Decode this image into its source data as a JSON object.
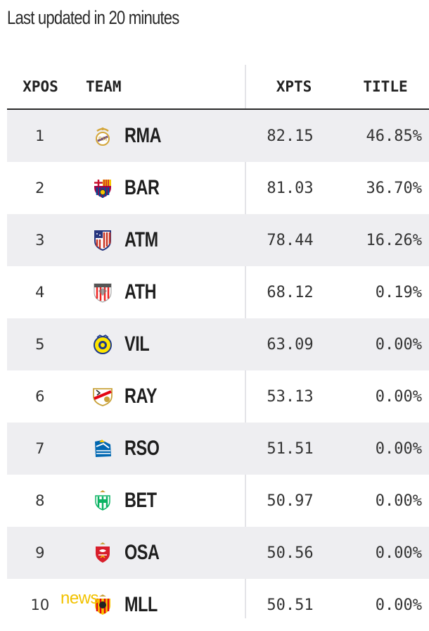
{
  "header": {
    "updated_text": "Last updated in 20 minutes"
  },
  "table": {
    "columns": {
      "pos": "XPOS",
      "team": "TEAM",
      "xpts": "XPTS",
      "title": "TITLE"
    },
    "rows": [
      {
        "pos": "1",
        "team": "RMA",
        "xpts": "82.15",
        "title": "46.85%",
        "crest": "real-madrid-crest-icon"
      },
      {
        "pos": "2",
        "team": "BAR",
        "xpts": "81.03",
        "title": "36.70%",
        "crest": "barcelona-crest-icon"
      },
      {
        "pos": "3",
        "team": "ATM",
        "xpts": "78.44",
        "title": "16.26%",
        "crest": "atletico-crest-icon"
      },
      {
        "pos": "4",
        "team": "ATH",
        "xpts": "68.12",
        "title": "0.19%",
        "crest": "athletic-crest-icon"
      },
      {
        "pos": "5",
        "team": "VIL",
        "xpts": "63.09",
        "title": "0.00%",
        "crest": "villarreal-crest-icon"
      },
      {
        "pos": "6",
        "team": "RAY",
        "xpts": "53.13",
        "title": "0.00%",
        "crest": "rayo-crest-icon"
      },
      {
        "pos": "7",
        "team": "RSO",
        "xpts": "51.51",
        "title": "0.00%",
        "crest": "real-sociedad-crest-icon"
      },
      {
        "pos": "8",
        "team": "BET",
        "xpts": "50.97",
        "title": "0.00%",
        "crest": "betis-crest-icon"
      },
      {
        "pos": "9",
        "team": "OSA",
        "xpts": "50.56",
        "title": "0.00%",
        "crest": "osasuna-crest-icon"
      },
      {
        "pos": "10",
        "team": "MLL",
        "xpts": "50.51",
        "title": "0.00%",
        "crest": "mallorca-crest-icon"
      }
    ]
  },
  "watermark": {
    "text": "news"
  },
  "colors": {
    "row_shade": "#eeeef1",
    "rule": "#2a2a2a",
    "watermark": "#f2c200"
  }
}
